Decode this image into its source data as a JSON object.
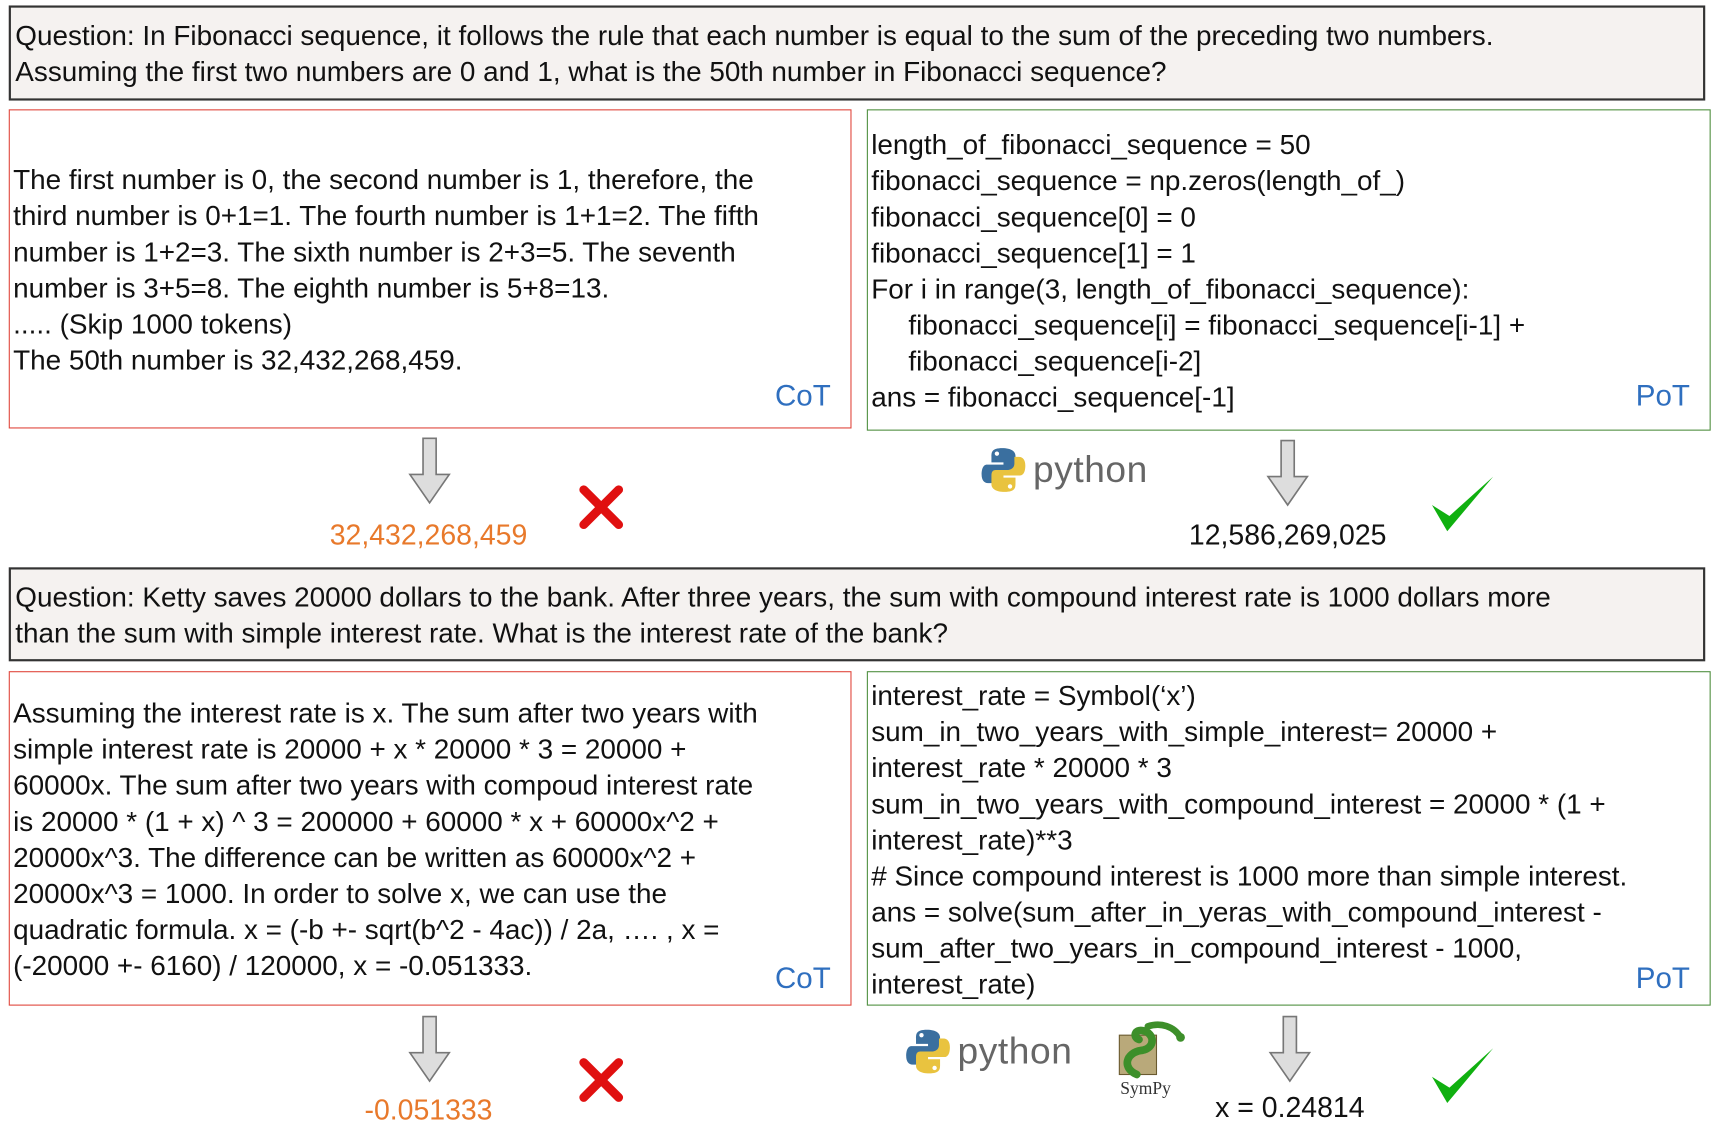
{
  "example1": {
    "question": [
      "Question: In Fibonacci sequence, it follows the rule that each number is equal to the sum of the preceding two numbers.",
      "Assuming the first two numbers are 0 and 1, what is the 50th number in Fibonacci sequence?"
    ],
    "cot_lines": [
      "The first number is 0, the second number is 1, therefore, the",
      "third number is 0+1=1. The fourth number is 1+1=2. The fifth",
      "number is 1+2=3. The sixth number is 2+3=5. The seventh",
      "number is 3+5=8. The eighth number is 5+8=13.",
      "..... (Skip 1000 tokens)",
      "The 50th number is 32,432,268,459."
    ],
    "cot_label": "CoT",
    "pot_lines": [
      "length_of_fibonacci_sequence = 50",
      "fibonacci_sequence = np.zeros(length_of_)",
      "fibonacci_sequence[0] = 0",
      "fibonacci_sequence[1] = 1",
      "For i in range(3, length_of_fibonacci_sequence):",
      "fibonacci_sequence[i] = fibonacci_sequence[i-1] +",
      "fibonacci_sequence[i-2]",
      "ans = fibonacci_sequence[-1]"
    ],
    "pot_label": "PoT",
    "cot_answer": "32,432,268,459",
    "pot_answer": "12,586,269,025",
    "python_label": "python"
  },
  "example2": {
    "question": [
      "Question: Ketty saves 20000 dollars to the bank. After three years, the sum with compound interest rate is 1000 dollars more",
      "than the sum with simple interest rate. What is the interest rate of the bank?"
    ],
    "cot_lines": [
      "Assuming the interest rate is x. The sum after two years with",
      "simple interest rate is 20000 + x * 20000 * 3 = 20000 +",
      "60000x. The sum after two years with compoud interest rate",
      "is 20000 * (1 + x) ^ 3 = 200000 + 60000 * x + 60000x^2 +",
      "20000x^3. The difference can be written as  60000x^2 +",
      "20000x^3 = 1000. In order to solve x, we can use the",
      "quadratic formula. x = (-b +- sqrt(b^2 - 4ac)) / 2a, …. , x =",
      "(-20000 +- 6160) / 120000, x = -0.051333."
    ],
    "cot_label": "CoT",
    "pot_lines": [
      "interest_rate = Symbol(‘x’)",
      "sum_in_two_years_with_simple_interest= 20000 +",
      "interest_rate * 20000 * 3",
      "sum_in_two_years_with_compound_interest = 20000 * (1 +",
      "interest_rate)**3",
      "# Since compound interest is 1000 more than simple interest.",
      "ans = solve(sum_after_in_yeras_with_compound_interest -",
      "sum_after_two_years_in_compound_interest - 1000,",
      "interest_rate)"
    ],
    "pot_label": "PoT",
    "cot_answer": "-0.051333",
    "pot_answer": "x = 0.24814",
    "python_label": "python",
    "sympy_label": "SymPy"
  },
  "colors": {
    "cot_border": "#e0463c",
    "pot_border": "#4f8f3f",
    "tag": "#2f6fbf",
    "wrong_answer": "#e8792b",
    "cross": "#e01010",
    "check": "#10b010",
    "question_bg": "#f5f2f0"
  }
}
